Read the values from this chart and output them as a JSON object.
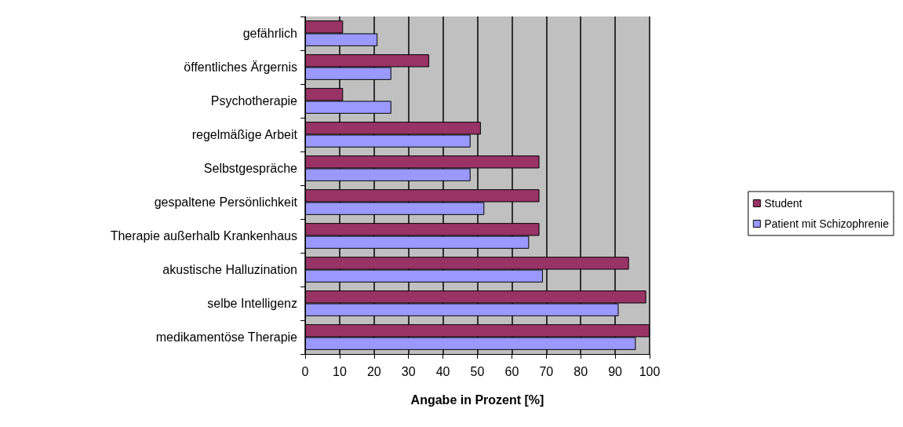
{
  "chart_data": {
    "type": "bar",
    "orientation": "horizontal",
    "xlabel": "Angabe in Prozent [%]",
    "categories": [
      "gefährlich",
      "öffentliches Ärgernis",
      "Psychotherapie",
      "regelmäßige Arbeit",
      "Selbstgespräche",
      "gespaltene Persönlichkeit",
      "Therapie außerhalb Krankenhaus",
      "akustische Halluzination",
      "selbe Intelligenz",
      "medikamentöse Therapie"
    ],
    "series": [
      {
        "name": "Student",
        "color": "#993366",
        "values": [
          11,
          36,
          11,
          51,
          68,
          68,
          68,
          94,
          99,
          100
        ]
      },
      {
        "name": "Patient mit Schizophrenie",
        "color": "#9999ff",
        "values": [
          21,
          25,
          25,
          48,
          48,
          52,
          65,
          69,
          91,
          96
        ]
      }
    ],
    "xlim": [
      0,
      100
    ],
    "xticks": [
      0,
      10,
      20,
      30,
      40,
      50,
      60,
      70,
      80,
      90,
      100
    ],
    "grid": "x",
    "legend": "right"
  }
}
